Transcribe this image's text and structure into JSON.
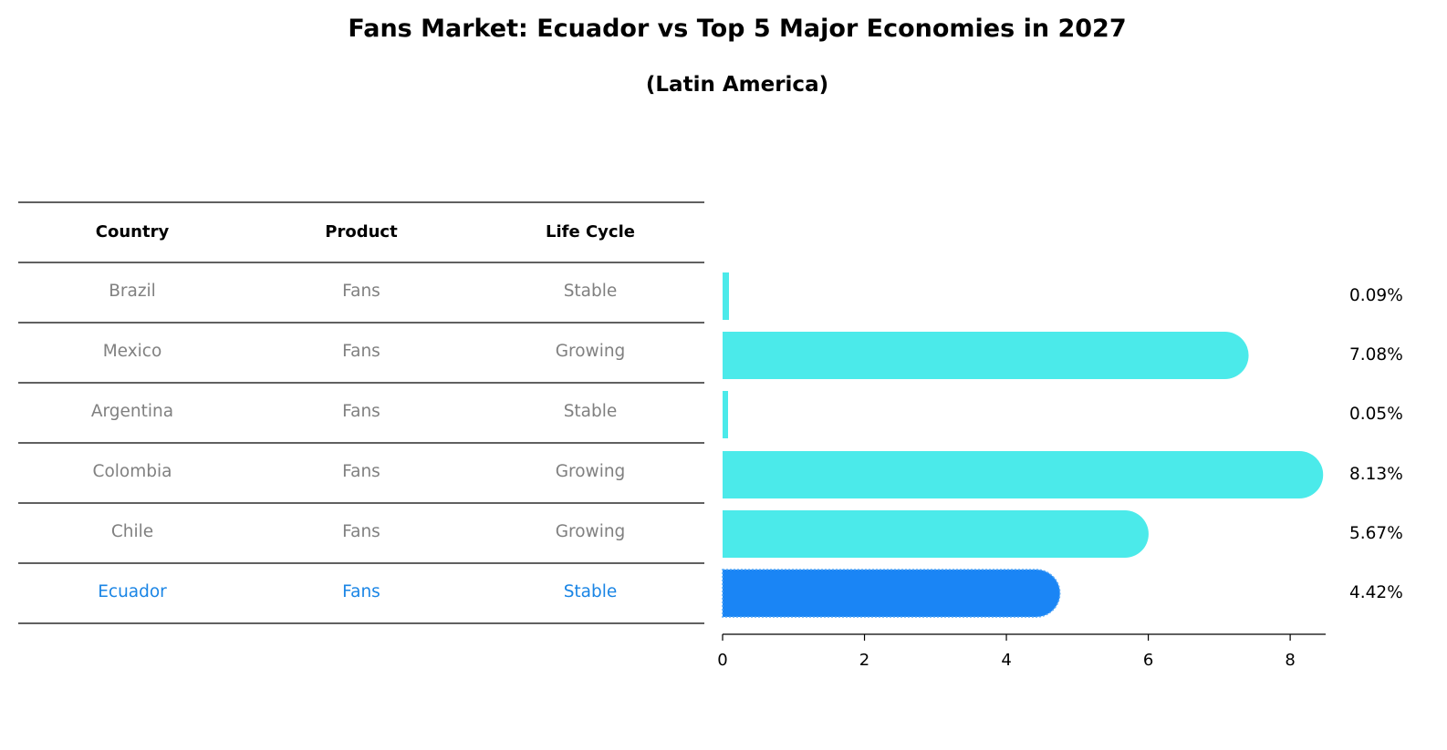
{
  "chart_data": {
    "type": "bar",
    "orientation": "horizontal",
    "title": "Fans Market: Ecuador vs Top 5 Major Economies in 2027",
    "subtitle": "(Latin America)",
    "table": {
      "headers": [
        "Country",
        "Product",
        "Life Cycle"
      ],
      "rows": [
        [
          "Brazil",
          "Fans",
          "Stable"
        ],
        [
          "Mexico",
          "Fans",
          "Growing"
        ],
        [
          "Argentina",
          "Fans",
          "Stable"
        ],
        [
          "Colombia",
          "Fans",
          "Growing"
        ],
        [
          "Chile",
          "Fans",
          "Growing"
        ],
        [
          "Ecuador",
          "Fans",
          "Stable"
        ]
      ]
    },
    "categories": [
      "Brazil",
      "Mexico",
      "Argentina",
      "Colombia",
      "Chile",
      "Ecuador"
    ],
    "values": [
      0.09,
      7.08,
      0.05,
      8.13,
      5.67,
      4.42
    ],
    "value_labels": [
      "0.09%",
      "7.08%",
      "0.05%",
      "8.13%",
      "5.67%",
      "4.42%"
    ],
    "highlight": "Ecuador",
    "xlim": [
      0,
      8.5
    ],
    "xticks": [
      0,
      2,
      4,
      6,
      8
    ],
    "xtick_labels": [
      "0",
      "2",
      "4",
      "6",
      "8"
    ],
    "xlabel": "",
    "ylabel": "",
    "grid": false,
    "colors": {
      "bar": "#4beaea",
      "highlight_bar": "#1a85f5",
      "text": "#808080",
      "highlight_text": "#1a85e5",
      "header_text": "#000000"
    }
  }
}
